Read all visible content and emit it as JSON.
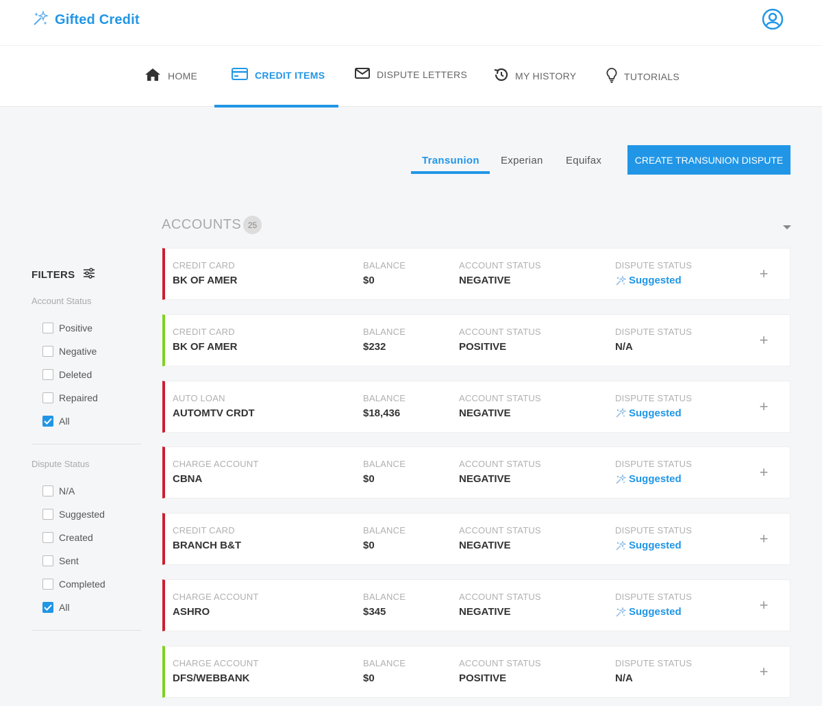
{
  "brand": {
    "name": "Gifted Credit",
    "color": "#2196e6"
  },
  "nav": {
    "items": [
      {
        "label": "HOME",
        "icon": "home-icon"
      },
      {
        "label": "CREDIT ITEMS",
        "icon": "credit-card-icon",
        "active": true
      },
      {
        "label": "DISPUTE LETTERS",
        "icon": "envelope-icon"
      },
      {
        "label": "MY HISTORY",
        "icon": "history-icon"
      },
      {
        "label": "TUTORIALS",
        "icon": "lightbulb-icon"
      }
    ]
  },
  "bureaus": {
    "tabs": [
      {
        "label": "Transunion",
        "active": true
      },
      {
        "label": "Experian"
      },
      {
        "label": "Equifax"
      }
    ],
    "create_button": "CREATE TRANSUNION DISPUTE"
  },
  "accounts": {
    "title": "ACCOUNTS",
    "count": "25"
  },
  "filters": {
    "title": "FILTERS",
    "account_status": {
      "label": "Account Status",
      "options": [
        {
          "label": "Positive",
          "checked": false
        },
        {
          "label": "Negative",
          "checked": false
        },
        {
          "label": "Deleted",
          "checked": false
        },
        {
          "label": "Repaired",
          "checked": false
        },
        {
          "label": "All",
          "checked": true
        }
      ]
    },
    "dispute_status": {
      "label": "Dispute Status",
      "options": [
        {
          "label": "N/A",
          "checked": false
        },
        {
          "label": "Suggested",
          "checked": false
        },
        {
          "label": "Created",
          "checked": false
        },
        {
          "label": "Sent",
          "checked": false
        },
        {
          "label": "Completed",
          "checked": false
        },
        {
          "label": "All",
          "checked": true
        }
      ]
    }
  },
  "columns": {
    "balance": "BALANCE",
    "account_status": "ACCOUNT STATUS",
    "dispute_status": "DISPUTE STATUS"
  },
  "rows": [
    {
      "type": "CREDIT CARD",
      "name": "BK OF AMER",
      "balance": "$0",
      "status": "NEGATIVE",
      "dispute": "Suggested"
    },
    {
      "type": "CREDIT CARD",
      "name": "BK OF AMER",
      "balance": "$232",
      "status": "POSITIVE",
      "dispute": "N/A"
    },
    {
      "type": "AUTO LOAN",
      "name": "AUTOMTV CRDT",
      "balance": "$18,436",
      "status": "NEGATIVE",
      "dispute": "Suggested"
    },
    {
      "type": "CHARGE ACCOUNT",
      "name": "CBNA",
      "balance": "$0",
      "status": "NEGATIVE",
      "dispute": "Suggested"
    },
    {
      "type": "CREDIT CARD",
      "name": "BRANCH B&T",
      "balance": "$0",
      "status": "NEGATIVE",
      "dispute": "Suggested"
    },
    {
      "type": "CHARGE ACCOUNT",
      "name": "ASHRO",
      "balance": "$345",
      "status": "NEGATIVE",
      "dispute": "Suggested"
    },
    {
      "type": "CHARGE ACCOUNT",
      "name": "DFS/WEBBANK",
      "balance": "$0",
      "status": "POSITIVE",
      "dispute": "N/A"
    }
  ]
}
